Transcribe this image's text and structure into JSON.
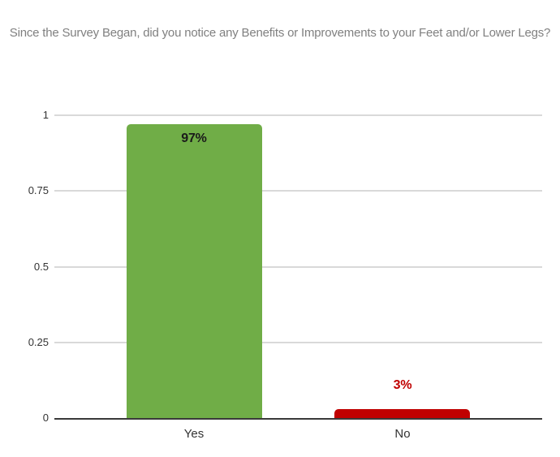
{
  "chart_data": {
    "type": "bar",
    "title": "Since the Survey Began, did you notice any Benefits or Improvements to your Feet and/or Lower Legs?",
    "categories": [
      "Yes",
      "No"
    ],
    "values": [
      0.97,
      0.03
    ],
    "points": [
      {
        "category": "Yes",
        "value": 0.97,
        "label": "97%",
        "bar_color": "#70AD47",
        "label_color": "#1a1a1a",
        "label_placement": "inside"
      },
      {
        "category": "No",
        "value": 0.03,
        "label": "3%",
        "bar_color": "#C00000",
        "label_color": "#C00000",
        "label_placement": "outside"
      }
    ],
    "xlabel": "",
    "ylabel": "",
    "ylim": [
      0,
      1
    ],
    "y_ticks": [
      {
        "value": 0,
        "label": "0"
      },
      {
        "value": 0.25,
        "label": "0.25"
      },
      {
        "value": 0.5,
        "label": "0.5"
      },
      {
        "value": 0.75,
        "label": "0.75"
      },
      {
        "value": 1,
        "label": "1"
      }
    ],
    "grid": "horizontal",
    "legend": "none",
    "colors": {
      "background": "#ffffff",
      "title": "#808080",
      "gridline": "#d9d9d9",
      "axis_line": "#3a3a3a",
      "tick_label": "#333333",
      "category_label": "#333333"
    }
  }
}
